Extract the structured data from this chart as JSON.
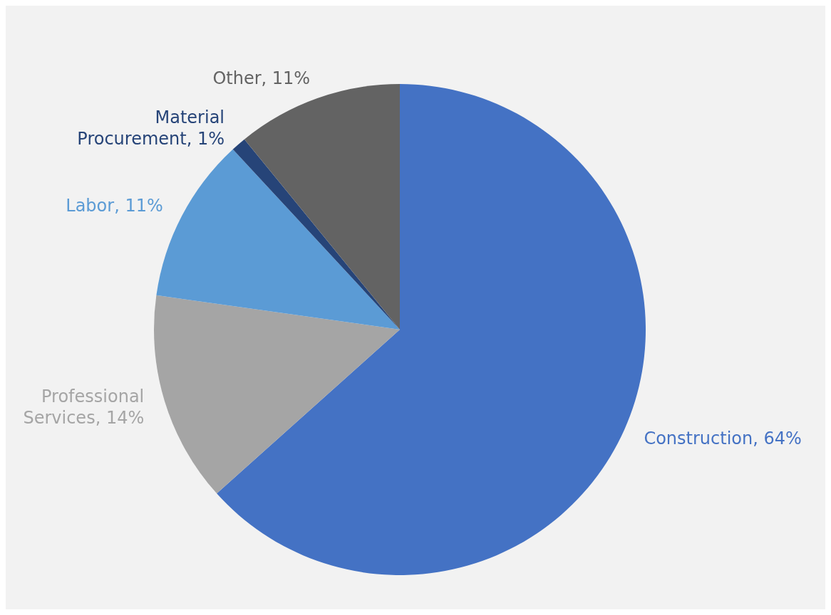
{
  "chart_data": {
    "type": "pie",
    "categories": [
      "Construction",
      "Professional Services",
      "Labor",
      "Material Procurement",
      "Other"
    ],
    "values": [
      64,
      14,
      11,
      1,
      11
    ],
    "value_labels": [
      "64%",
      "14%",
      "11%",
      "1%",
      "11%"
    ],
    "colors": [
      "#4472c4",
      "#a5a5a5",
      "#5b9bd5",
      "#264478",
      "#636363"
    ],
    "legend": false
  }
}
